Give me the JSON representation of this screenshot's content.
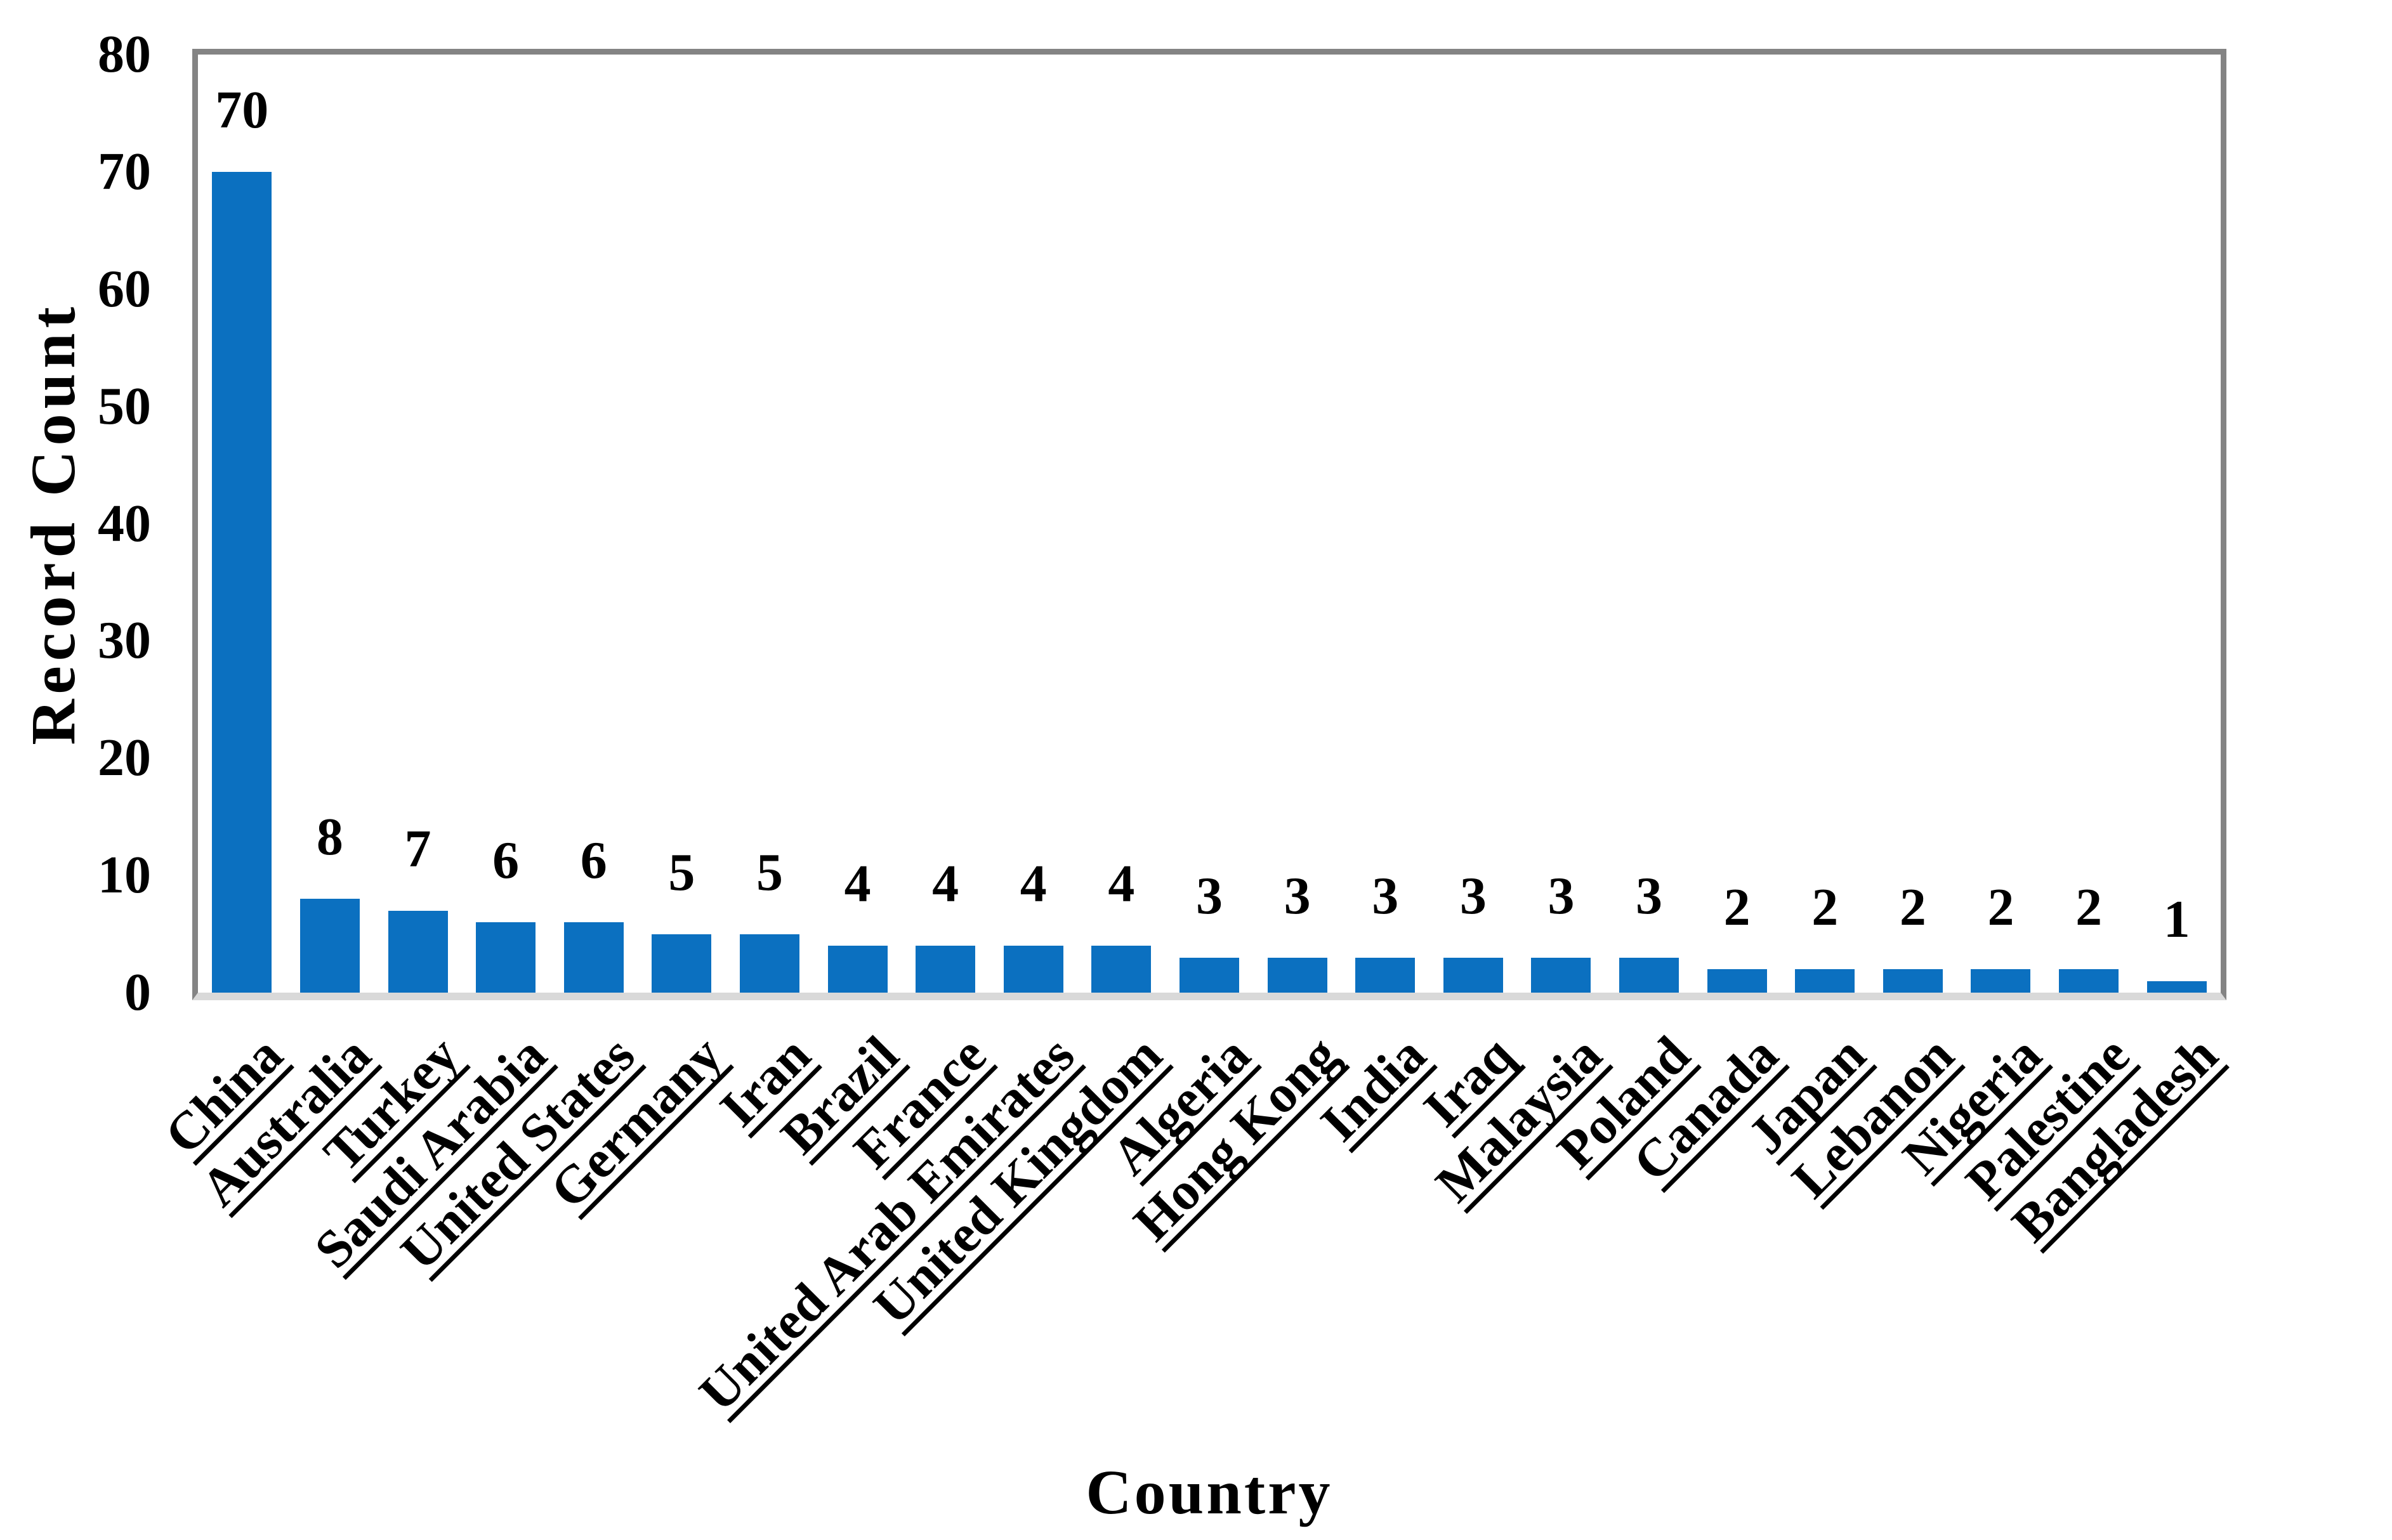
{
  "chart_data": {
    "type": "bar",
    "title": "",
    "xlabel": "Country",
    "ylabel": "Record Count",
    "categories": [
      "China",
      "Australia",
      "Turkey",
      "Saudi Arabia",
      "United States",
      "Germany",
      "Iran",
      "Brazil",
      "France",
      "United Arab Emirates",
      "United Kingdom",
      "Algeria",
      "Hong Kong",
      "India",
      "Iraq",
      "Malaysia",
      "Poland",
      "Canada",
      "Japan",
      "Lebanon",
      "Nigeria",
      "Palestine",
      "Bangladesh"
    ],
    "values": [
      70,
      8,
      7,
      6,
      6,
      5,
      5,
      4,
      4,
      4,
      4,
      3,
      3,
      3,
      3,
      3,
      3,
      2,
      2,
      2,
      2,
      2,
      1
    ],
    "data_labels": [
      70,
      8,
      7,
      6,
      6,
      5,
      5,
      4,
      4,
      4,
      4,
      3,
      3,
      3,
      3,
      3,
      3,
      2,
      2,
      2,
      2,
      2,
      1
    ],
    "ylim": [
      0,
      80
    ],
    "yticks": [
      0,
      10,
      20,
      30,
      40,
      50,
      60,
      70,
      80
    ],
    "grid": false,
    "legend": "none",
    "bar_label_position": "above-bar",
    "x_label_rotation_deg": 45,
    "x_label_underline": true,
    "colors": {
      "bar": "#0b70c0",
      "plot_border": "#848484",
      "x_axis_line": "#d9d9d9",
      "text": "#000000",
      "background": "#ffffff"
    }
  }
}
